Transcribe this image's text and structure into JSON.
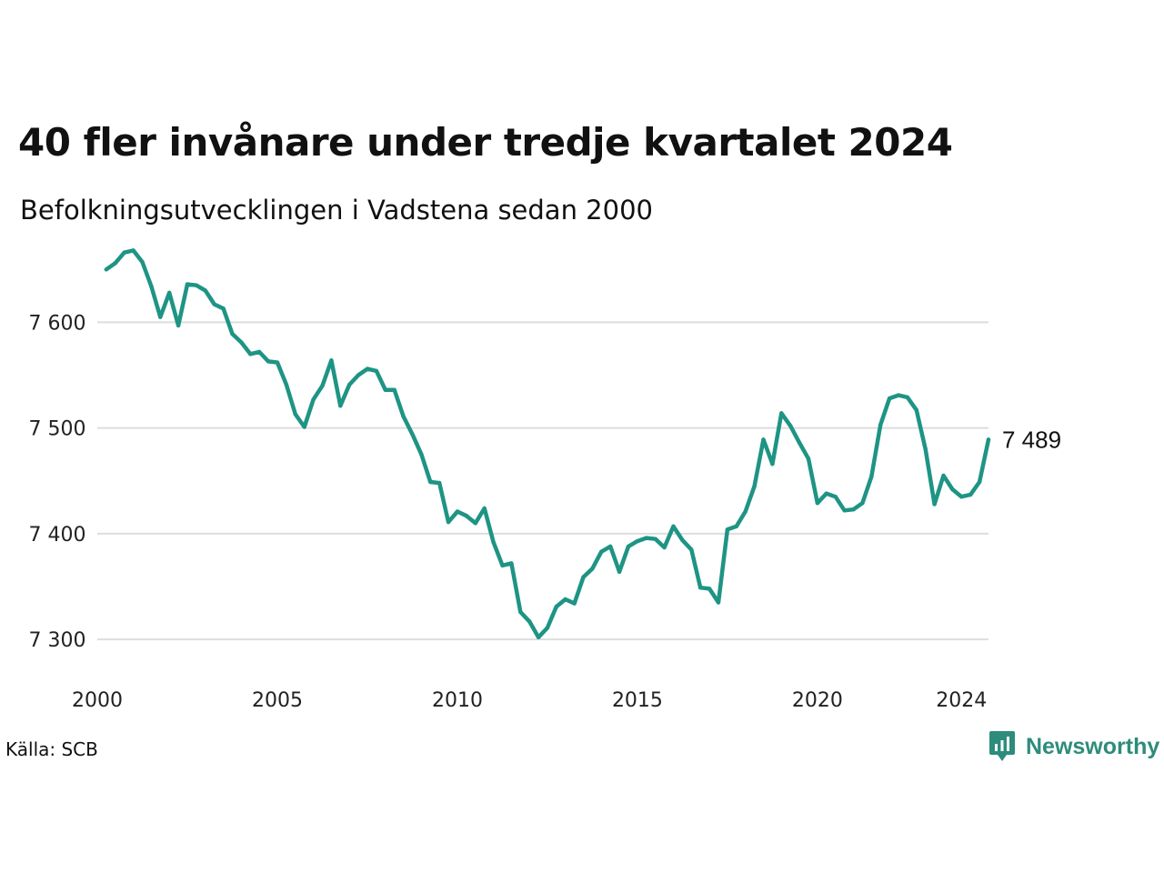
{
  "header": {
    "title": "40 fler invånare under tredje kvartalet 2024",
    "subtitle": "Befolkningsutvecklingen i Vadstena sedan 2000"
  },
  "footer": {
    "source": "Källa: SCB",
    "brand": "Newsworthy",
    "brand_icon": "newsworthy-logo-icon"
  },
  "colors": {
    "line": "#1e9484",
    "grid": "#dddddd",
    "brand": "#2e8c7c"
  },
  "chart_data": {
    "type": "line",
    "title": "40 fler invånare under tredje kvartalet 2024",
    "subtitle": "Befolkningsutvecklingen i Vadstena sedan 2000",
    "xlabel": "",
    "ylabel": "",
    "xlim": [
      2000,
      2024.75
    ],
    "ylim": [
      7290,
      7680
    ],
    "grid": "horizontal",
    "x_ticks": [
      2000,
      2005,
      2010,
      2015,
      2020,
      2024
    ],
    "x_tick_labels": [
      "2000",
      "2005",
      "2010",
      "2015",
      "2020",
      "2024"
    ],
    "y_ticks": [
      7300,
      7400,
      7500,
      7600
    ],
    "y_tick_labels": [
      "7 300",
      "7 400",
      "7 500",
      "7 600"
    ],
    "end_label": "7 489",
    "series": [
      {
        "x": [
          2000.25,
          2000.5,
          2000.75,
          2001,
          2001.25,
          2001.5,
          2001.75,
          2002,
          2002.25,
          2002.5,
          2002.75,
          2003,
          2003.25,
          2003.5,
          2003.75,
          2004,
          2004.25,
          2004.5,
          2004.75,
          2005,
          2005.25,
          2005.5,
          2005.75,
          2006,
          2006.25,
          2006.5,
          2006.75,
          2007,
          2007.25,
          2007.5,
          2007.75,
          2008,
          2008.25,
          2008.5,
          2008.75,
          2009,
          2009.25,
          2009.5,
          2009.75,
          2010,
          2010.25,
          2010.5,
          2010.75,
          2011,
          2011.25,
          2011.5,
          2011.75,
          2012,
          2012.25,
          2012.5,
          2012.75,
          2013,
          2013.25,
          2013.5,
          2013.75,
          2014,
          2014.25,
          2014.5,
          2014.75,
          2015,
          2015.25,
          2015.5,
          2015.75,
          2016,
          2016.25,
          2016.5,
          2016.75,
          2017,
          2017.25,
          2017.5,
          2017.75,
          2018,
          2018.25,
          2018.5,
          2018.75,
          2019,
          2019.25,
          2019.5,
          2019.75,
          2020,
          2020.25,
          2020.5,
          2020.75,
          2021,
          2021.25,
          2021.5,
          2021.75,
          2022,
          2022.25,
          2022.5,
          2022.75,
          2023,
          2023.25,
          2023.5,
          2023.75,
          2024,
          2024.25,
          2024.5,
          2024.75
        ],
        "values": [
          7650,
          7656,
          7666,
          7668,
          7657,
          7634,
          7605,
          7628,
          7597,
          7636,
          7635,
          7630,
          7617,
          7613,
          7589,
          7581,
          7570,
          7572,
          7563,
          7562,
          7541,
          7513,
          7501,
          7527,
          7540,
          7564,
          7521,
          7541,
          7550,
          7556,
          7554,
          7536,
          7536,
          7511,
          7494,
          7475,
          7449,
          7448,
          7411,
          7421,
          7417,
          7410,
          7424,
          7392,
          7370,
          7372,
          7326,
          7317,
          7302,
          7311,
          7331,
          7338,
          7334,
          7359,
          7367,
          7383,
          7388,
          7364,
          7388,
          7393,
          7396,
          7395,
          7387,
          7407,
          7394,
          7385,
          7349,
          7348,
          7335,
          7404,
          7407,
          7421,
          7445,
          7489,
          7466,
          7514,
          7502,
          7486,
          7471,
          7429,
          7438,
          7435,
          7422,
          7423,
          7429,
          7454,
          7503,
          7528,
          7531,
          7529,
          7517,
          7480,
          7428,
          7455,
          7442,
          7435,
          7437,
          7449,
          7489
        ]
      }
    ]
  }
}
